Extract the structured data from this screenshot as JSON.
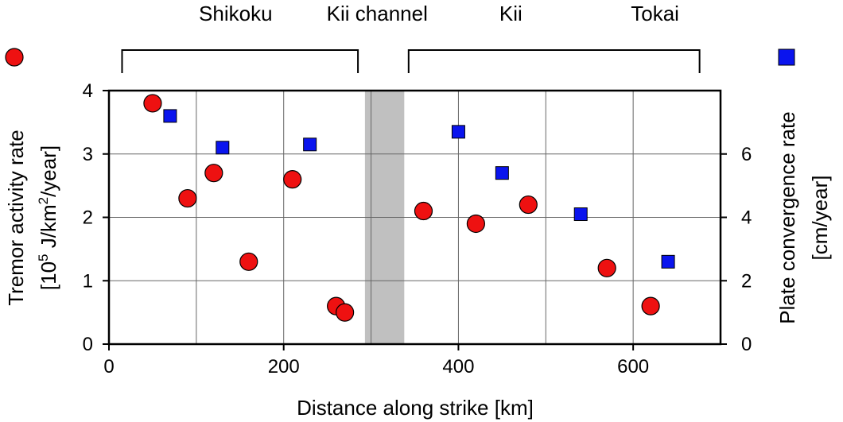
{
  "chart_data": {
    "type": "scatter",
    "xlabel": "Distance along strike [km]",
    "ylabel_left_line1": "Tremor activity rate",
    "ylabel_left_line2_prefix": "[10",
    "ylabel_left_line2_sup1": "5",
    "ylabel_left_line2_mid": " J/km",
    "ylabel_left_line2_sup2": "2",
    "ylabel_left_line2_suffix": "/year]",
    "ylabel_right_line1": "Plate convergence rate",
    "ylabel_right_line2": "[cm/year]",
    "xlim": [
      0,
      700
    ],
    "ylim_left": [
      0,
      4
    ],
    "ylim_right": [
      0,
      8
    ],
    "x_ticks": [
      "0",
      "200",
      "400",
      "600"
    ],
    "y_left_ticks": [
      "0",
      "1",
      "2",
      "3",
      "4"
    ],
    "y_right_ticks": [
      "0",
      "2",
      "4",
      "6"
    ],
    "grid": true,
    "shaded_band": {
      "x_start": 293,
      "x_end": 338,
      "color": "#c0c0c0"
    },
    "regions": [
      {
        "label": "Shikoku",
        "x_center": 145,
        "bracket": [
          15,
          285
        ]
      },
      {
        "label": "Kii channel",
        "x_center": 307
      },
      {
        "label": "Kii",
        "x_center": 460
      },
      {
        "label": "Tokai",
        "x_center": 625,
        "bracket": [
          343,
          676
        ]
      }
    ],
    "series": [
      {
        "axis": "left",
        "marker": "circle",
        "color": "#ee1111",
        "x": [
          50,
          90,
          120,
          160,
          210,
          260,
          270,
          360,
          420,
          480,
          570,
          620
        ],
        "y": [
          3.8,
          2.3,
          2.7,
          1.3,
          2.6,
          0.6,
          0.5,
          2.1,
          1.9,
          2.2,
          1.2,
          0.6
        ]
      },
      {
        "axis": "right",
        "marker": "square",
        "color": "#0a14ee",
        "x": [
          70,
          130,
          230,
          400,
          450,
          540,
          640
        ],
        "y": [
          7.2,
          6.2,
          6.3,
          6.7,
          5.4,
          4.1,
          2.6
        ]
      }
    ]
  }
}
